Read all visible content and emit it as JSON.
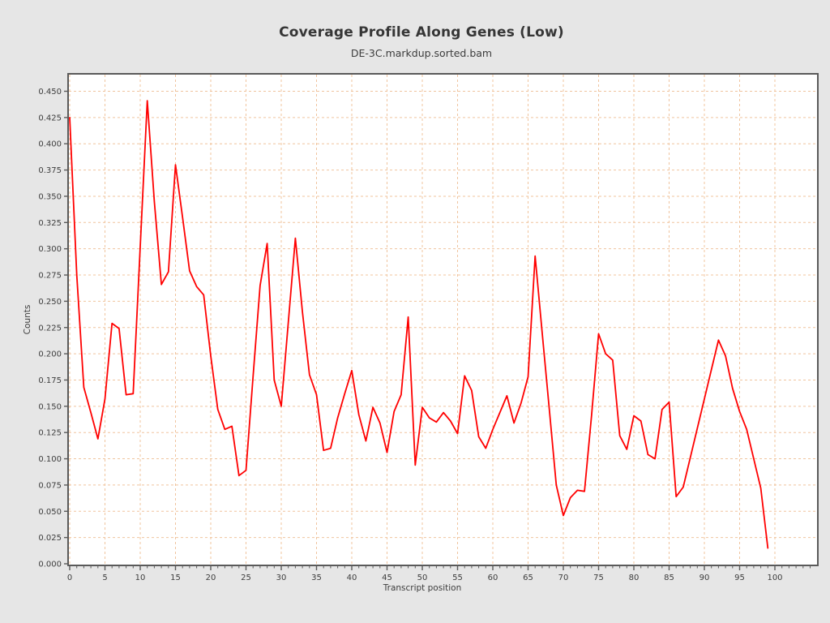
{
  "header": {
    "title": "Coverage Profile Along Genes (Low)",
    "subtitle": "DE-3C.markdup.sorted.bam"
  },
  "chart_data": {
    "type": "line",
    "title": "Coverage Profile Along Genes (Low)",
    "subtitle": "DE-3C.markdup.sorted.bam",
    "xlabel": "Transcript position",
    "ylabel": "Counts",
    "xlim": [
      0,
      100
    ],
    "ylim": [
      0.0,
      0.45
    ],
    "x_major_tick_step": 5,
    "x_minor_tick_step": 1,
    "y_tick_step": 0.025,
    "y_tick_decimals": 3,
    "grid": true,
    "legend": "none",
    "series": [
      {
        "name": "DE-3C.markdup.sorted.bam",
        "color": "#ff0000",
        "x": [
          0,
          1,
          2,
          3,
          4,
          5,
          6,
          7,
          8,
          9,
          10,
          11,
          12,
          13,
          14,
          15,
          16,
          17,
          18,
          19,
          20,
          21,
          22,
          23,
          24,
          25,
          26,
          27,
          28,
          29,
          30,
          31,
          32,
          33,
          34,
          35,
          36,
          37,
          38,
          39,
          40,
          41,
          42,
          43,
          44,
          45,
          46,
          47,
          48,
          49,
          50,
          51,
          52,
          53,
          54,
          55,
          56,
          57,
          58,
          59,
          60,
          61,
          62,
          63,
          64,
          65,
          66,
          67,
          68,
          69,
          70,
          71,
          72,
          73,
          74,
          75,
          76,
          77,
          78,
          79,
          80,
          81,
          82,
          83,
          84,
          85,
          86,
          87,
          88,
          89,
          90,
          91,
          92,
          93,
          94,
          95,
          96,
          97,
          98,
          99
        ],
        "values": [
          0.425,
          0.275,
          0.168,
          0.144,
          0.119,
          0.157,
          0.229,
          0.224,
          0.161,
          0.162,
          0.302,
          0.441,
          0.345,
          0.266,
          0.278,
          0.38,
          0.33,
          0.279,
          0.264,
          0.256,
          0.198,
          0.147,
          0.128,
          0.131,
          0.084,
          0.089,
          0.178,
          0.265,
          0.305,
          0.175,
          0.15,
          0.23,
          0.31,
          0.24,
          0.18,
          0.161,
          0.108,
          0.11,
          0.139,
          0.162,
          0.184,
          0.142,
          0.117,
          0.149,
          0.134,
          0.106,
          0.145,
          0.161,
          0.235,
          0.094,
          0.149,
          0.139,
          0.135,
          0.144,
          0.136,
          0.124,
          0.179,
          0.165,
          0.121,
          0.11,
          0.128,
          0.144,
          0.16,
          0.134,
          0.153,
          0.178,
          0.293,
          0.22,
          0.148,
          0.075,
          0.046,
          0.063,
          0.07,
          0.069,
          0.141,
          0.219,
          0.2,
          0.194,
          0.122,
          0.109,
          0.141,
          0.136,
          0.104,
          0.1,
          0.147,
          0.154,
          0.064,
          0.073,
          0.101,
          0.129,
          0.157,
          0.185,
          0.213,
          0.198,
          0.167,
          0.145,
          0.128,
          0.1,
          0.072,
          0.015
        ]
      }
    ],
    "style": {
      "background": "#e6e6e6",
      "panel": "#ffffff",
      "border": "#5a5a5a",
      "grid": "#f0c49e",
      "line": "#ff0000",
      "text": "#3d3d3d"
    }
  }
}
